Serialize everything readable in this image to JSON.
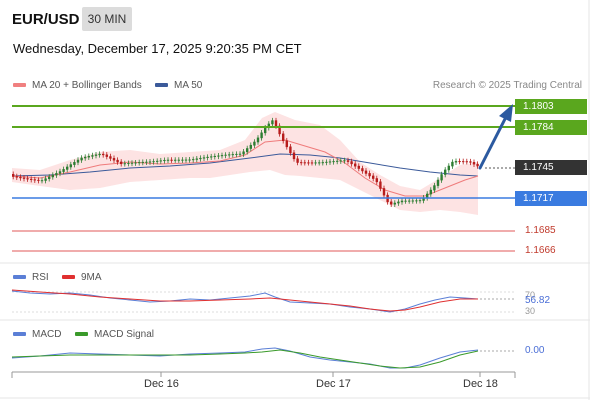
{
  "header": {
    "pair": "EUR/USD",
    "timeframe": "30 MIN",
    "datetime": "Wednesday, December 17, 2025 9:20:35 PM CET"
  },
  "legend": {
    "ma20_label": "MA 20 + Bollinger Bands",
    "ma50_label": "MA 50",
    "credit": "Research © 2025 Trading Central"
  },
  "levels": {
    "resistance_2": "1.1803",
    "resistance_1": "1.1784",
    "current": "1.1745",
    "pivot": "1.1717",
    "support_1": "1.1685",
    "support_2": "1.1666"
  },
  "rsi": {
    "label": "RSI",
    "ma_label": "9MA",
    "value": "56.82",
    "scale_high": "70",
    "scale_low": "30"
  },
  "macd": {
    "label": "MACD",
    "signal_label": "MACD Signal",
    "value": "0.00"
  },
  "x_axis": {
    "labels": [
      "Dec 16",
      "Dec 17",
      "Dec 18"
    ]
  },
  "colors": {
    "resistance": "#5aa71e",
    "pivot": "#3a7be0",
    "support": "#e05a5a",
    "current": "#333333",
    "arrow": "#2c5aa0",
    "candle_up": "#2e7d32",
    "candle_down": "#b71c1c",
    "bollinger": "#fbd9d9",
    "ma20": "#ef7b7b",
    "ma50": "#3b5a9a",
    "rsi": "#5b7fd6",
    "rsi_ma": "#e03030",
    "macd": "#5b7fd6",
    "macd_signal": "#3a9a2a"
  },
  "icons": {
    "arrow": "up-right-arrow-icon"
  }
}
